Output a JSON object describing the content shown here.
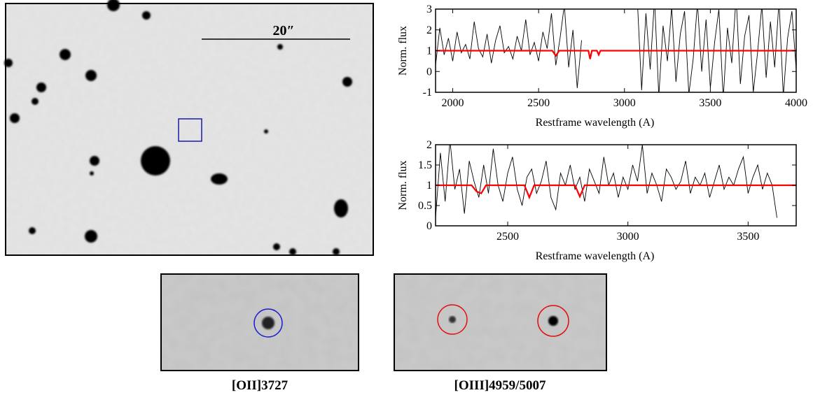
{
  "images": {
    "scale_label": "20″",
    "captions": [
      "[OII]3727",
      "[OIII]4959/5007"
    ]
  },
  "chart_data": [
    {
      "type": "line",
      "xlabel": "Restframe wavelength (A)",
      "ylabel": "Norm. flux",
      "xlim": [
        1900,
        4000
      ],
      "ylim": [
        -1,
        3
      ],
      "xticks": [
        2000,
        2500,
        3000,
        3500,
        4000
      ],
      "yticks": [
        -1,
        0,
        1,
        2,
        3
      ],
      "series": [
        {
          "color": "#000000",
          "x": [
            1900,
            1925,
            1950,
            1975,
            2000,
            2025,
            2050,
            2075,
            2100,
            2125,
            2150,
            2175,
            2200,
            2225,
            2250,
            2275,
            2300,
            2325,
            2350,
            2375,
            2400,
            2425,
            2450,
            2475,
            2500,
            2525,
            2550,
            2575,
            2600,
            2625,
            2650,
            2675,
            2700,
            2725,
            2750,
            2910,
            3075,
            3100,
            3125,
            3150,
            3175,
            3200,
            3225,
            3250,
            3275,
            3300,
            3325,
            3350,
            3375,
            3400,
            3425,
            3450,
            3475,
            3500,
            3525,
            3550,
            3575,
            3600,
            3625,
            3650,
            3675,
            3700,
            3725,
            3750,
            3775,
            3800,
            3825,
            3850,
            3875,
            3900,
            3925,
            3950,
            3975,
            4000
          ],
          "values": [
            0.3,
            2.1,
            0.8,
            1.6,
            0.5,
            1.9,
            0.9,
            1.3,
            0.6,
            2.4,
            1.1,
            0.7,
            1.8,
            0.4,
            1.5,
            2.2,
            0.9,
            1.2,
            0.6,
            1.7,
            1.0,
            2.5,
            0.8,
            1.4,
            0.5,
            1.9,
            1.1,
            2.8,
            0.3,
            1.6,
            3.2,
            0.2,
            2.0,
            -0.8,
            1.5,
            null,
            3.4,
            -0.9,
            2.8,
            0.1,
            3.5,
            -1.2,
            2.2,
            0.5,
            3.1,
            -0.5,
            1.8,
            2.9,
            -1.1,
            0.6,
            3.3,
            0.0,
            2.5,
            -0.8,
            1.4,
            3.0,
            -1.3,
            2.1,
            0.4,
            3.6,
            -0.6,
            1.7,
            2.7,
            -1.0,
            0.9,
            3.2,
            -0.3,
            2.4,
            0.2,
            3.4,
            -1.2,
            1.6,
            2.9,
            0.1
          ]
        },
        {
          "color": "#ff0000",
          "x": [
            1900,
            2580,
            2600,
            2620,
            2790,
            2800,
            2810,
            2840,
            2850,
            2860,
            4000
          ],
          "values": [
            1,
            1,
            0.75,
            1,
            1,
            0.6,
            1,
            1,
            0.8,
            1,
            1
          ]
        }
      ]
    },
    {
      "type": "line",
      "xlabel": "Restframe wavelength (A)",
      "ylabel": "Norm. flux",
      "xlim": [
        2200,
        3700
      ],
      "ylim": [
        0,
        2
      ],
      "xticks": [
        2500,
        3000,
        3500
      ],
      "yticks": [
        0,
        0.5,
        1,
        1.5,
        2
      ],
      "series": [
        {
          "color": "#000000",
          "x": [
            2200,
            2220,
            2240,
            2260,
            2280,
            2300,
            2320,
            2340,
            2360,
            2380,
            2400,
            2420,
            2440,
            2460,
            2480,
            2500,
            2520,
            2540,
            2560,
            2580,
            2600,
            2620,
            2640,
            2660,
            2680,
            2700,
            2720,
            2740,
            2760,
            2780,
            2800,
            2820,
            2840,
            2860,
            2880,
            2900,
            2920,
            2940,
            2960,
            2980,
            3000,
            3020,
            3040,
            3060,
            3080,
            3100,
            3120,
            3140,
            3160,
            3180,
            3200,
            3220,
            3240,
            3260,
            3280,
            3300,
            3320,
            3340,
            3360,
            3380,
            3400,
            3420,
            3440,
            3460,
            3480,
            3500,
            3520,
            3540,
            3560,
            3580,
            3600,
            3620
          ],
          "values": [
            0.2,
            1.8,
            0.6,
            2.1,
            0.9,
            1.4,
            0.3,
            1.6,
            1.1,
            0.7,
            1.5,
            0.8,
            1.9,
            1.0,
            0.6,
            1.3,
            1.7,
            0.9,
            0.5,
            1.2,
            1.4,
            0.8,
            1.1,
            1.6,
            0.7,
            0.4,
            1.3,
            1.0,
            1.5,
            0.9,
            1.2,
            0.6,
            1.4,
            1.1,
            0.8,
            1.7,
            1.0,
            1.3,
            0.7,
            1.2,
            0.9,
            1.5,
            1.1,
            2.0,
            0.8,
            1.3,
            1.0,
            0.6,
            1.4,
            1.2,
            0.9,
            1.1,
            1.6,
            0.8,
            1.2,
            1.0,
            1.3,
            0.7,
            1.1,
            1.5,
            0.9,
            1.2,
            1.0,
            1.4,
            1.7,
            0.8,
            1.2,
            1.5,
            0.9,
            1.3,
            1.0,
            0.2
          ]
        },
        {
          "color": "#ff0000",
          "x": [
            2200,
            2350,
            2370,
            2390,
            2410,
            2570,
            2590,
            2610,
            2780,
            2800,
            2820,
            3700
          ],
          "values": [
            1,
            1,
            0.85,
            0.8,
            1,
            1,
            0.7,
            1,
            1,
            0.72,
            1,
            1
          ]
        }
      ]
    }
  ]
}
